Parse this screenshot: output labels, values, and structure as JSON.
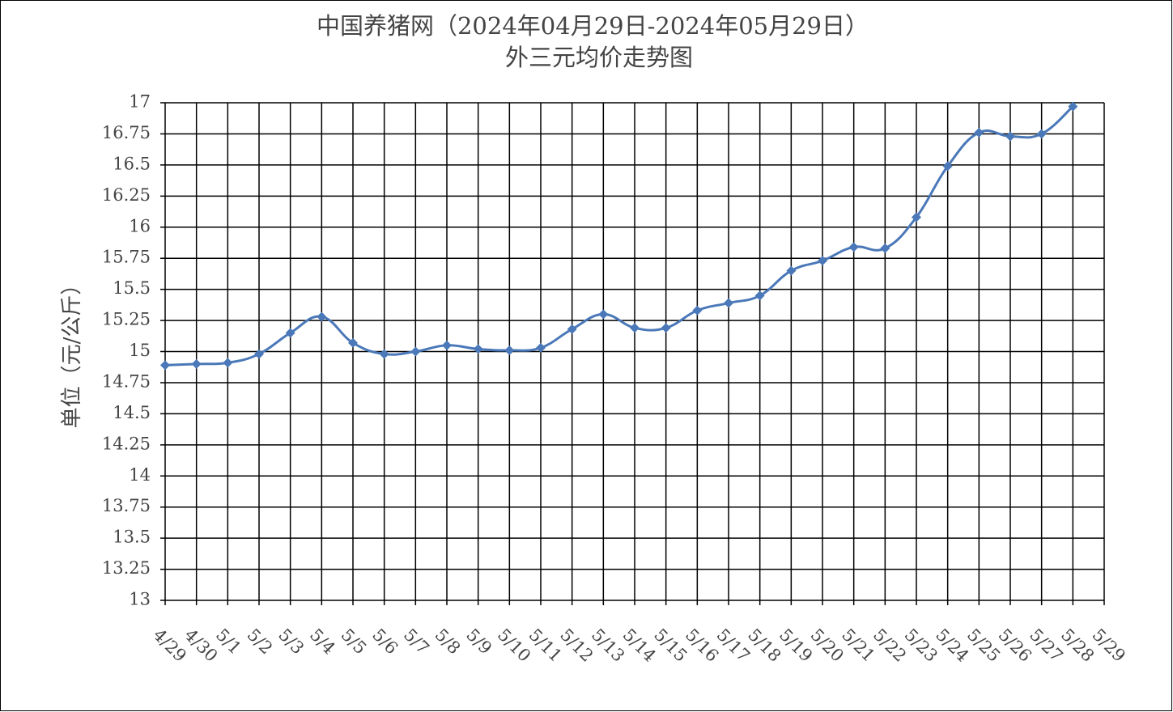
{
  "chart_data": {
    "type": "line",
    "title": "中国养猪网（2024年04月29日-2024年05月29日）",
    "subtitle": "外三元均价走势图",
    "y_label": "单位（元/公斤）",
    "categories": [
      "4/29",
      "4/30",
      "5/1",
      "5/2",
      "5/3",
      "5/4",
      "5/5",
      "5/6",
      "5/7",
      "5/8",
      "5/9",
      "5/10",
      "5/11",
      "5/12",
      "5/13",
      "5/14",
      "5/15",
      "5/16",
      "5/17",
      "5/18",
      "5/19",
      "5/20",
      "5/21",
      "5/22",
      "5/23",
      "5/24",
      "5/25",
      "5/26",
      "5/27",
      "5/28",
      "5/29"
    ],
    "series": [
      {
        "name": "外三元",
        "color": "#4a78b8",
        "values": [
          14.89,
          14.9,
          14.91,
          14.98,
          15.15,
          15.28,
          15.07,
          14.98,
          15.0,
          15.05,
          15.02,
          15.01,
          15.03,
          15.18,
          15.3,
          15.19,
          15.19,
          15.33,
          15.39,
          15.45,
          15.65,
          15.73,
          15.84,
          15.83,
          16.08,
          16.49,
          16.76,
          16.73,
          16.75,
          16.97,
          null
        ]
      }
    ],
    "ylim": [
      13,
      17
    ],
    "yticks": [
      13,
      13.25,
      13.5,
      13.75,
      14,
      14.25,
      14.5,
      14.75,
      15,
      15.25,
      15.5,
      15.75,
      16,
      16.25,
      16.5,
      16.75,
      17
    ],
    "grid": true
  }
}
